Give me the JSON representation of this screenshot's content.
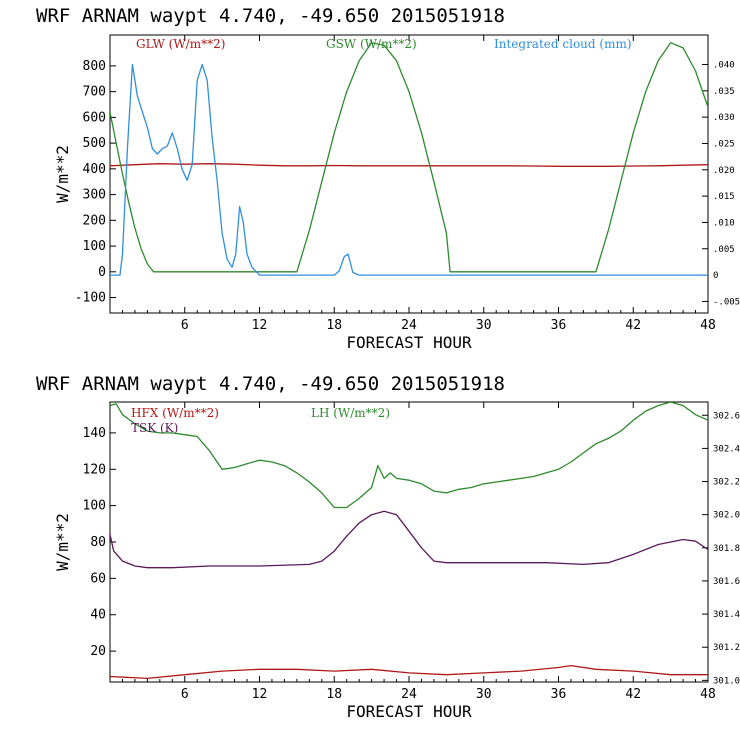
{
  "chart_data": [
    {
      "type": "line",
      "title": "WRF   ARNAM waypt     4.740, -49.650  2015051918",
      "xlabel": "FORECAST HOUR",
      "ylabel": "W/m**2",
      "xlim": [
        0,
        48
      ],
      "xticks": [
        6,
        12,
        18,
        24,
        30,
        36,
        42,
        48
      ],
      "ylim": [
        -160,
        920
      ],
      "yticks": [
        -100,
        0,
        100,
        200,
        300,
        400,
        500,
        600,
        700,
        800
      ],
      "right_axis": {
        "ylim": [
          -0.0072,
          0.0456
        ],
        "ticks": [
          -0.005,
          0,
          0.005,
          0.01,
          0.015,
          0.02,
          0.025,
          0.03,
          0.035,
          0.04
        ],
        "tick_labels": [
          "-.005",
          "0",
          ".005",
          ".010",
          ".015",
          ".020",
          ".025",
          ".030",
          ".035",
          ".040"
        ]
      },
      "series": [
        {
          "name": "GLW (W/m**2)",
          "color": "#b01818",
          "axis": "left",
          "x": [
            0,
            2,
            4,
            6,
            8,
            10,
            12,
            14,
            16,
            18,
            20,
            22,
            24,
            26,
            28,
            30,
            32,
            34,
            36,
            38,
            40,
            42,
            44,
            46,
            48
          ],
          "y": [
            412,
            416,
            420,
            418,
            420,
            418,
            414,
            412,
            412,
            413,
            412,
            412,
            412,
            412,
            412,
            412,
            412,
            411,
            410,
            410,
            410,
            411,
            412,
            414,
            416
          ]
        },
        {
          "name": "GSW (W/m**2)",
          "color": "#2e8a2e",
          "axis": "left",
          "x": [
            0,
            0.5,
            1,
            1.5,
            2,
            2.5,
            3,
            3.5,
            15,
            16,
            17,
            18,
            19,
            20,
            21,
            22,
            23,
            24,
            25,
            26,
            27,
            27.3,
            39,
            40,
            41,
            42,
            43,
            44,
            45,
            46,
            47,
            48
          ],
          "y": [
            620,
            500,
            380,
            270,
            170,
            90,
            30,
            0,
            0,
            160,
            350,
            540,
            700,
            820,
            890,
            880,
            820,
            700,
            540,
            350,
            150,
            0,
            0,
            160,
            350,
            540,
            700,
            820,
            890,
            870,
            780,
            640
          ]
        },
        {
          "name": "Integrated cloud (mm)",
          "color": "#2f8fdc",
          "axis": "right",
          "x": [
            0,
            0.8,
            1,
            1.4,
            1.8,
            2.2,
            2.6,
            3,
            3.4,
            3.8,
            4.2,
            4.6,
            5,
            5.4,
            5.8,
            6.2,
            6.6,
            7,
            7.4,
            7.8,
            8.2,
            8.6,
            9,
            9.4,
            9.8,
            10.1,
            10.4,
            10.7,
            11,
            11.4,
            12,
            18,
            18.4,
            18.8,
            19.1,
            19.5,
            20,
            48
          ],
          "y": [
            0,
            0,
            0.004,
            0.024,
            0.04,
            0.034,
            0.031,
            0.028,
            0.024,
            0.023,
            0.024,
            0.0245,
            0.027,
            0.024,
            0.02,
            0.018,
            0.021,
            0.037,
            0.04,
            0.037,
            0.026,
            0.018,
            0.008,
            0.003,
            0.0015,
            0.004,
            0.013,
            0.01,
            0.004,
            0.0015,
            0,
            0,
            0.0008,
            0.0035,
            0.004,
            0.0005,
            0,
            0
          ]
        }
      ]
    },
    {
      "type": "line",
      "title": "WRF   ARNAM waypt     4.740, -49.650  2015051918",
      "xlabel": "FORECAST HOUR",
      "ylabel": "W/m**2",
      "xlim": [
        0,
        48
      ],
      "xticks": [
        6,
        12,
        18,
        24,
        30,
        36,
        42,
        48
      ],
      "ylim": [
        3,
        157
      ],
      "yticks": [
        20,
        40,
        60,
        80,
        100,
        120,
        140
      ],
      "right_axis": {
        "ylim": [
          300.99,
          302.68
        ],
        "ticks": [
          301.0,
          301.2,
          301.4,
          301.6,
          301.8,
          302.0,
          302.2,
          302.4,
          302.6
        ],
        "tick_labels": [
          "301.0",
          "301.2",
          "301.4",
          "301.6",
          "301.8",
          "302.0",
          "302.2",
          "302.4",
          "302.6"
        ]
      },
      "series": [
        {
          "name": "HFX (W/m**2)",
          "color": "#b01818",
          "axis": "left",
          "x": [
            0,
            3,
            6,
            9,
            12,
            15,
            18,
            21,
            24,
            27,
            30,
            33,
            36,
            37,
            39,
            42,
            45,
            48
          ],
          "y": [
            6,
            5,
            7,
            9,
            10,
            10,
            9,
            10,
            8,
            7,
            8,
            9,
            11,
            12,
            10,
            9,
            7,
            7
          ]
        },
        {
          "name": "LH (W/m**2)",
          "color": "#2e8a2e",
          "axis": "left",
          "x": [
            0,
            0.5,
            1,
            2,
            3,
            4,
            5,
            6,
            7,
            8,
            9,
            10,
            11,
            12,
            13,
            14,
            15,
            16,
            17,
            18,
            19,
            20,
            21,
            21.5,
            22,
            22.5,
            23,
            24,
            25,
            26,
            27,
            28,
            29,
            30,
            31,
            32,
            33,
            34,
            35,
            36,
            37,
            38,
            39,
            40,
            41,
            42,
            43,
            44,
            45,
            46,
            47,
            48
          ],
          "y": [
            155,
            156,
            150,
            145,
            141,
            140,
            140,
            139,
            138,
            130,
            120,
            121,
            123,
            125,
            124,
            122,
            118,
            113,
            107,
            99,
            99,
            104,
            110,
            122,
            115,
            118,
            115,
            114,
            112,
            108,
            107,
            109,
            110,
            112,
            113,
            114,
            115,
            116,
            118,
            120,
            124,
            129,
            134,
            137,
            141,
            147,
            152,
            155,
            157,
            155,
            150,
            147
          ]
        },
        {
          "name": "TSK (K)",
          "color": "#5a1a5a",
          "axis": "right",
          "x": [
            0,
            0.3,
            1,
            2,
            3,
            5,
            8,
            12,
            16,
            17,
            18,
            19,
            20,
            21,
            22,
            23,
            24,
            25,
            26,
            27,
            30,
            35,
            38,
            40,
            42,
            44,
            46,
            47,
            48
          ],
          "y": [
            301.88,
            301.78,
            301.72,
            301.69,
            301.68,
            301.68,
            301.69,
            301.69,
            301.7,
            301.72,
            301.78,
            301.87,
            301.95,
            302.0,
            302.02,
            302.0,
            301.9,
            301.8,
            301.72,
            301.71,
            301.71,
            301.71,
            301.7,
            301.71,
            301.76,
            301.82,
            301.85,
            301.84,
            301.79
          ]
        }
      ]
    }
  ]
}
